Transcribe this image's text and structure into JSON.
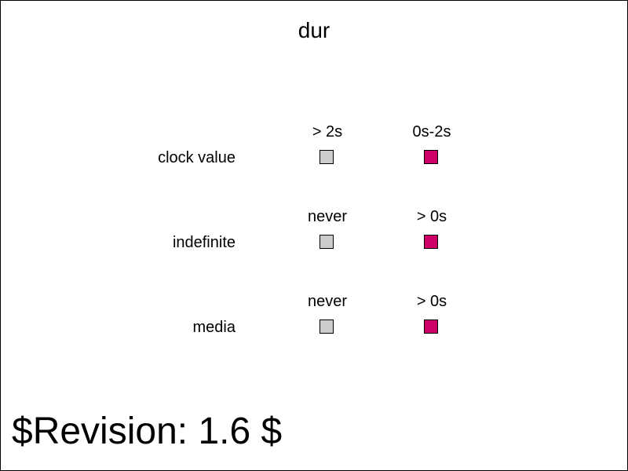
{
  "title": "dur",
  "revision": "$Revision: 1.6 $",
  "colors": {
    "inactive": "#cccccc",
    "active": "#cc0066"
  },
  "rows": [
    {
      "label": "clock value",
      "left_header": "> 2s",
      "right_header": "0s-2s"
    },
    {
      "label": "indefinite",
      "left_header": "never",
      "right_header": "> 0s"
    },
    {
      "label": "media",
      "left_header": "never",
      "right_header": "> 0s"
    }
  ]
}
